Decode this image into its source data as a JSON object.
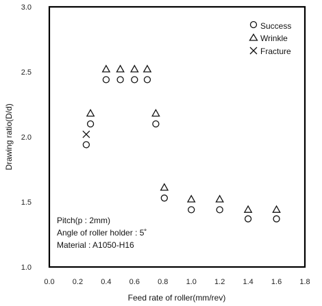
{
  "chart_data": {
    "type": "scatter",
    "title": "",
    "xlabel": "Feed rate of roller(mm/rev)",
    "ylabel": "Drawing ratio(D/d)",
    "xlim": [
      0.0,
      1.8
    ],
    "ylim": [
      1.0,
      3.0
    ],
    "x_ticks": [
      "0.0",
      "0.2",
      "0.4",
      "0.6",
      "0.8",
      "1.0",
      "1.2",
      "1.4",
      "1.6",
      "1.8"
    ],
    "y_ticks": [
      "1.0",
      "1.5",
      "2.0",
      "2.5",
      "3.0"
    ],
    "grid": false,
    "legend_position": "top-right",
    "series": [
      {
        "name": "Success",
        "marker": "circle",
        "points": [
          {
            "x": 0.26,
            "y": 1.94
          },
          {
            "x": 0.29,
            "y": 2.1
          },
          {
            "x": 0.4,
            "y": 2.44
          },
          {
            "x": 0.5,
            "y": 2.44
          },
          {
            "x": 0.6,
            "y": 2.44
          },
          {
            "x": 0.69,
            "y": 2.44
          },
          {
            "x": 0.75,
            "y": 2.1
          },
          {
            "x": 0.81,
            "y": 1.53
          },
          {
            "x": 1.0,
            "y": 1.44
          },
          {
            "x": 1.2,
            "y": 1.44
          },
          {
            "x": 1.4,
            "y": 1.37
          },
          {
            "x": 1.6,
            "y": 1.37
          }
        ]
      },
      {
        "name": "Wrinkle",
        "marker": "triangle",
        "points": [
          {
            "x": 0.29,
            "y": 2.18
          },
          {
            "x": 0.4,
            "y": 2.52
          },
          {
            "x": 0.5,
            "y": 2.52
          },
          {
            "x": 0.6,
            "y": 2.52
          },
          {
            "x": 0.69,
            "y": 2.52
          },
          {
            "x": 0.75,
            "y": 2.18
          },
          {
            "x": 0.81,
            "y": 1.61
          },
          {
            "x": 1.0,
            "y": 1.52
          },
          {
            "x": 1.2,
            "y": 1.52
          },
          {
            "x": 1.4,
            "y": 1.44
          },
          {
            "x": 1.6,
            "y": 1.44
          }
        ]
      },
      {
        "name": "Fracture",
        "marker": "cross",
        "points": [
          {
            "x": 0.26,
            "y": 2.02
          }
        ]
      }
    ],
    "annotations": [
      "Pitch(p : 2mm)",
      "Angle of roller holder : 5˚",
      "Material : A1050-H16"
    ]
  }
}
